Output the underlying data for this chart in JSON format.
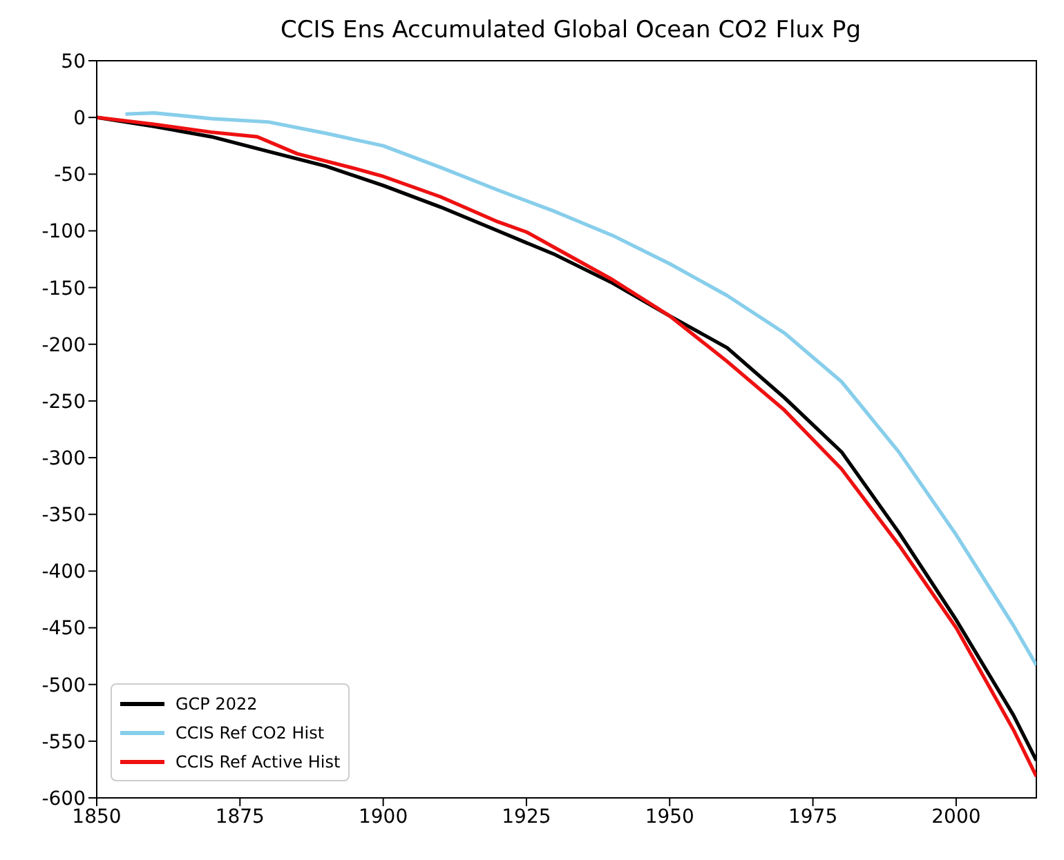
{
  "chart_data": {
    "type": "line",
    "title": "CCIS Ens Accumulated Global Ocean CO2 Flux Pg",
    "xlim": [
      1850,
      2014
    ],
    "xticks": [
      1850,
      1875,
      1900,
      1925,
      1950,
      1975,
      2000
    ],
    "ylim": [
      -600,
      50
    ],
    "yticks": [
      50,
      0,
      -50,
      -100,
      -150,
      -200,
      -250,
      -300,
      -350,
      -400,
      -450,
      -500,
      -550,
      -600
    ],
    "grid": false,
    "legend": "bottom left",
    "series": [
      {
        "name": "GCP 2022",
        "color": "#000000",
        "x": [
          1850,
          1860,
          1870,
          1880,
          1890,
          1900,
          1910,
          1920,
          1930,
          1940,
          1950,
          1960,
          1970,
          1980,
          1990,
          2000,
          2010,
          2014
        ],
        "values": [
          0,
          -8,
          -17,
          -30,
          -43,
          -60,
          -79,
          -100,
          -121,
          -146,
          -175,
          -203,
          -247,
          -295,
          -366,
          -443,
          -527,
          -567
        ]
      },
      {
        "name": "CCIS Ref CO2 Hist",
        "color": "#87ceeb",
        "x": [
          1855,
          1860,
          1870,
          1880,
          1890,
          1900,
          1910,
          1920,
          1930,
          1940,
          1950,
          1960,
          1970,
          1980,
          1990,
          2000,
          2010,
          2014
        ],
        "values": [
          3,
          4,
          -1,
          -4,
          -14,
          -25,
          -44,
          -64,
          -83,
          -104,
          -129,
          -157,
          -190,
          -233,
          -295,
          -368,
          -448,
          -483
        ]
      },
      {
        "name": "CCIS Ref Active Hist",
        "color": "#ee1111",
        "x": [
          1850,
          1860,
          1870,
          1878,
          1885,
          1895,
          1900,
          1910,
          1920,
          1925,
          1930,
          1940,
          1950,
          1960,
          1970,
          1980,
          1990,
          2000,
          2010,
          2014
        ],
        "values": [
          0,
          -6,
          -13,
          -17,
          -32,
          -45,
          -52,
          -70,
          -92,
          -101,
          -115,
          -143,
          -175,
          -215,
          -258,
          -310,
          -377,
          -450,
          -540,
          -581
        ]
      }
    ]
  }
}
